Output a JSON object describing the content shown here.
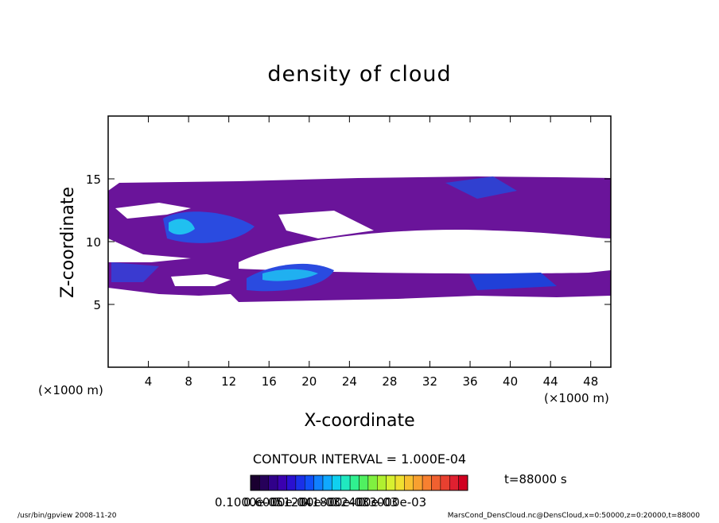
{
  "chart_data": {
    "type": "contour",
    "title": "density of cloud",
    "x_label": "X-coordinate",
    "y_label": "Z-coordinate",
    "x_unit": "(×1000 m)",
    "y_unit": "(×1000 m)",
    "xlim": [
      0,
      50
    ],
    "xticks": [
      4,
      8,
      12,
      16,
      20,
      24,
      28,
      32,
      36,
      40,
      44,
      48
    ],
    "ylim": [
      0,
      20
    ],
    "yticks": [
      5,
      10,
      15
    ],
    "contour_interval": "CONTOUR INTERVAL = 1.000E-04",
    "time_label": "t=88000 s",
    "colorbar_labels": [
      "0.1000e-05",
      "0.6000e-04",
      "0.1200e-03",
      "0.1800e-03",
      "0.2400e-03",
      "0.3000e-03"
    ],
    "colorbar_colors": [
      "#1a0030",
      "#26005a",
      "#30008a",
      "#3a00b0",
      "#2a10d0",
      "#1a30e8",
      "#1050f8",
      "#1080ff",
      "#10a8ff",
      "#10d0f0",
      "#20e8c0",
      "#30f090",
      "#50f060",
      "#80f040",
      "#b0f030",
      "#d8f030",
      "#f0e030",
      "#f8c030",
      "#f8a030",
      "#f88030",
      "#f06030",
      "#e84030",
      "#e02030",
      "#d00020"
    ],
    "footer_left": "/usr/bin/gpview  2008-11-20",
    "footer_right": "MarsCond_DensCloud.nc@DensCloud,x=0:50000,z=0:20000,t=88000"
  }
}
